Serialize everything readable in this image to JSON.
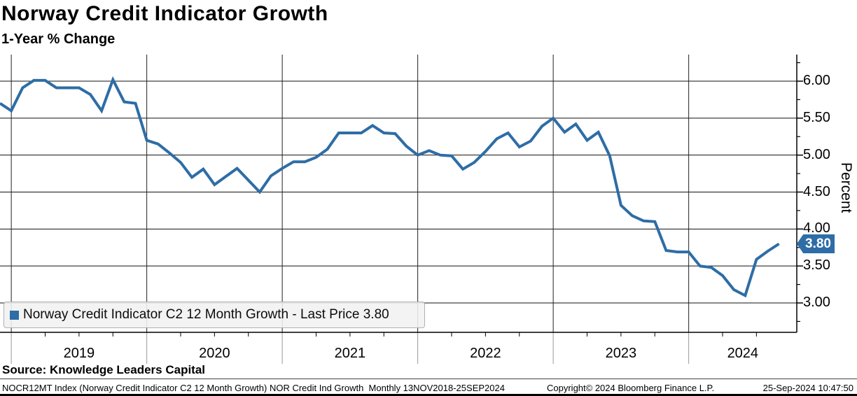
{
  "header": {
    "title": "Norway Credit Indicator Growth",
    "subtitle": "1-Year % Change"
  },
  "legend": {
    "label": "Norway Credit Indicator C2 12 Month Growth - Last Price 3.80",
    "marker_color": "#2e6da6"
  },
  "chart_data": {
    "type": "line",
    "title": "Norway Credit Indicator Growth",
    "subtitle": "1-Year % Change",
    "series_name": "Norway Credit Indicator C2 12 Month Growth",
    "ylabel": "Percent",
    "last_price": 3.8,
    "last_price_label": "3.80",
    "line_color": "#2e6da6",
    "grid": true,
    "legend_position": "bottom-left",
    "ylim": [
      2.6,
      6.35
    ],
    "y_ticks": [
      3.0,
      3.5,
      4.0,
      4.5,
      5.0,
      5.5,
      6.0
    ],
    "x_tick_labels": [
      "2019",
      "2020",
      "2021",
      "2022",
      "2023",
      "2024"
    ],
    "x": [
      "2018-12",
      "2019-01",
      "2019-02",
      "2019-03",
      "2019-04",
      "2019-05",
      "2019-06",
      "2019-07",
      "2019-08",
      "2019-09",
      "2019-10",
      "2019-11",
      "2019-12",
      "2020-01",
      "2020-02",
      "2020-03",
      "2020-04",
      "2020-05",
      "2020-06",
      "2020-07",
      "2020-08",
      "2020-09",
      "2020-10",
      "2020-11",
      "2020-12",
      "2021-01",
      "2021-02",
      "2021-03",
      "2021-04",
      "2021-05",
      "2021-06",
      "2021-07",
      "2021-08",
      "2021-09",
      "2021-10",
      "2021-11",
      "2021-12",
      "2022-01",
      "2022-02",
      "2022-03",
      "2022-04",
      "2022-05",
      "2022-06",
      "2022-07",
      "2022-08",
      "2022-09",
      "2022-10",
      "2022-11",
      "2022-12",
      "2023-01",
      "2023-02",
      "2023-03",
      "2023-04",
      "2023-05",
      "2023-06",
      "2023-07",
      "2023-08",
      "2023-09",
      "2023-10",
      "2023-11",
      "2023-12",
      "2024-01",
      "2024-02",
      "2024-03",
      "2024-04",
      "2024-05",
      "2024-06",
      "2024-07",
      "2024-08",
      "2024-09"
    ],
    "values": [
      5.7,
      5.6,
      5.91,
      6.01,
      6.01,
      5.91,
      5.91,
      5.91,
      5.82,
      5.6,
      6.02,
      5.72,
      5.7,
      5.2,
      5.15,
      5.03,
      4.9,
      4.7,
      4.81,
      4.6,
      4.71,
      4.82,
      4.66,
      4.5,
      4.72,
      4.82,
      4.91,
      4.91,
      4.97,
      5.08,
      5.3,
      5.3,
      5.3,
      5.4,
      5.3,
      5.29,
      5.12,
      5.0,
      5.06,
      5.0,
      4.99,
      4.81,
      4.9,
      5.05,
      5.22,
      5.3,
      5.11,
      5.19,
      5.39,
      5.5,
      5.31,
      5.42,
      5.2,
      5.31,
      4.99,
      4.32,
      4.18,
      4.11,
      4.1,
      3.71,
      3.69,
      3.69,
      3.5,
      3.48,
      3.37,
      3.18,
      3.1,
      3.59,
      3.7,
      3.8
    ]
  },
  "footer": {
    "source": "Source: Knowledge Leaders Capital",
    "left": "NOCR12MT Index (Norway Credit Indicator C2 12 Month Growth) NOR Credit Ind Growth  Monthly 13NOV2018-25SEP2024",
    "copyright": "Copyright© 2024 Bloomberg Finance L.P.",
    "timestamp": "25-Sep-2024 10:47:50"
  }
}
